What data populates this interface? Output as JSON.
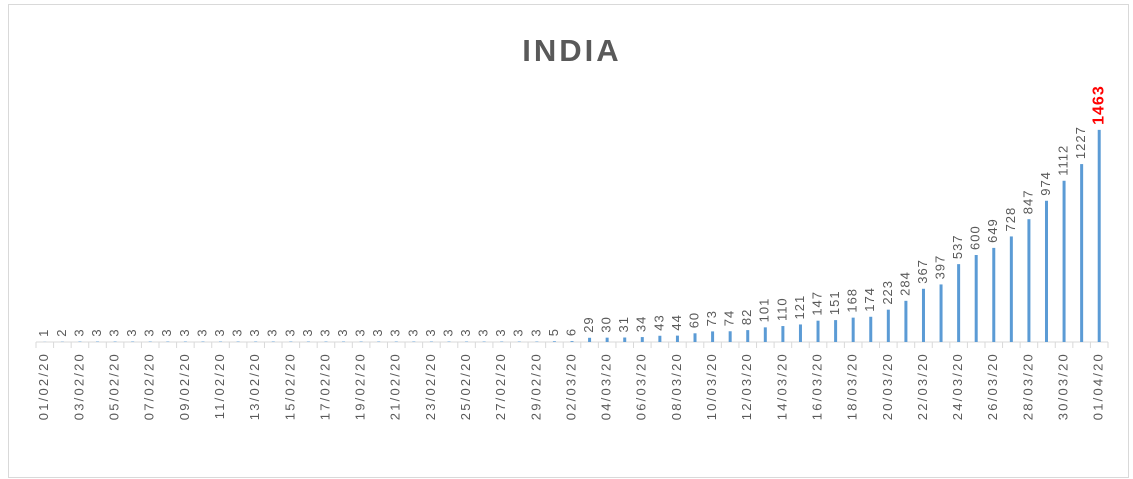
{
  "chart_data": {
    "type": "bar",
    "title": "INDIA",
    "categories": [
      "01/02/20",
      null,
      "03/02/20",
      null,
      "05/02/20",
      null,
      "07/02/20",
      null,
      "09/02/20",
      null,
      "11/02/20",
      null,
      "13/02/20",
      null,
      "15/02/20",
      null,
      "17/02/20",
      null,
      "19/02/20",
      null,
      "21/02/20",
      null,
      "23/02/20",
      null,
      "25/02/20",
      null,
      "27/02/20",
      null,
      "29/02/20",
      null,
      "02/03/20",
      null,
      "04/03/20",
      null,
      "06/03/20",
      null,
      "08/03/20",
      null,
      "10/03/20",
      null,
      "12/03/20",
      null,
      "14/03/20",
      null,
      "16/03/20",
      null,
      "18/03/20",
      null,
      "20/03/20",
      null,
      "22/03/20",
      null,
      "24/03/20",
      null,
      "26/03/20",
      null,
      "28/03/20",
      null,
      "30/03/20",
      null,
      "01/04/20"
    ],
    "values": [
      1,
      2,
      3,
      3,
      3,
      3,
      3,
      3,
      3,
      3,
      3,
      3,
      3,
      3,
      3,
      3,
      3,
      3,
      3,
      3,
      3,
      3,
      3,
      3,
      3,
      3,
      3,
      3,
      3,
      5,
      6,
      29,
      30,
      31,
      34,
      43,
      44,
      60,
      73,
      74,
      82,
      101,
      110,
      121,
      147,
      151,
      168,
      174,
      223,
      284,
      367,
      397,
      537,
      600,
      649,
      728,
      847,
      974,
      1112,
      1227,
      1463
    ],
    "color": "#5b9bd5",
    "highlight_color": "#ff0000",
    "ylim": [
      0,
      1600
    ]
  }
}
